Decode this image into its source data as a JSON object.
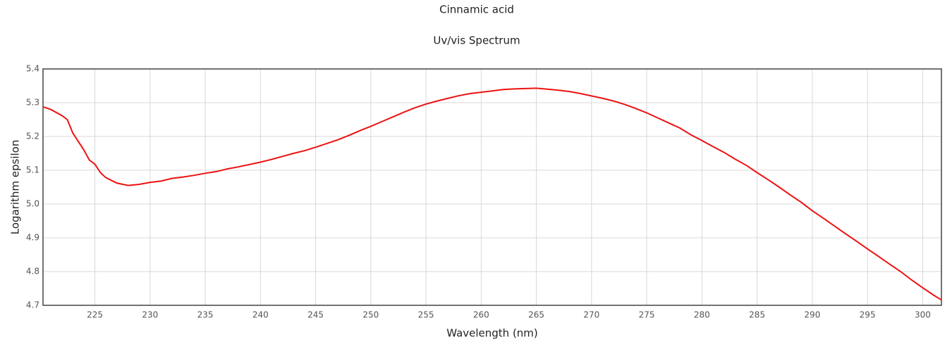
{
  "chart_data": {
    "type": "line",
    "title": "Cinnamic acid",
    "subtitle": "Uv/vis Spectrum",
    "x_label": "Wavelength (nm)",
    "y_label": "Logarithm epsilon",
    "xlim": [
      220.3,
      301.7
    ],
    "ylim": [
      4.7,
      5.4
    ],
    "xticks": [
      225,
      230,
      235,
      240,
      245,
      250,
      255,
      260,
      265,
      270,
      275,
      280,
      285,
      290,
      295,
      300
    ],
    "yticks": [
      4.7,
      4.8,
      4.9,
      {
        "value": 5,
        "label": "5.0"
      },
      5.1,
      5.2,
      5.3,
      5.4
    ],
    "grid": true,
    "x": [
      220.3,
      221,
      222,
      222.5,
      223,
      224,
      224.5,
      225,
      225.5,
      226,
      227,
      228,
      229,
      230,
      231,
      232,
      233,
      234,
      235,
      236,
      237,
      238,
      239,
      240,
      241,
      242,
      243,
      244,
      245,
      246,
      247,
      248,
      249,
      250,
      251,
      252,
      253,
      254,
      255,
      256,
      257,
      258,
      259,
      260,
      261,
      262,
      263,
      264,
      265,
      266,
      267,
      268,
      269,
      270,
      271,
      272,
      273,
      274,
      275,
      276,
      277,
      278,
      279,
      280,
      281,
      282,
      283,
      284,
      285,
      286,
      287,
      288,
      289,
      290,
      291,
      292,
      293,
      294,
      295,
      296,
      297,
      298,
      299,
      300,
      301,
      301.7
    ],
    "series": [
      {
        "name": "Cinnamic acid",
        "color": "#ee1111",
        "values": [
          5.288,
          5.28,
          5.262,
          5.25,
          5.21,
          5.16,
          5.13,
          5.118,
          5.093,
          5.078,
          5.062,
          5.055,
          5.058,
          5.064,
          5.068,
          5.076,
          5.08,
          5.085,
          5.091,
          5.096,
          5.104,
          5.11,
          5.117,
          5.124,
          5.132,
          5.141,
          5.15,
          5.158,
          5.168,
          5.179,
          5.19,
          5.203,
          5.217,
          5.23,
          5.244,
          5.258,
          5.272,
          5.285,
          5.296,
          5.305,
          5.313,
          5.321,
          5.327,
          5.331,
          5.335,
          5.339,
          5.341,
          5.342,
          5.343,
          5.34,
          5.337,
          5.333,
          5.327,
          5.32,
          5.313,
          5.305,
          5.295,
          5.283,
          5.27,
          5.255,
          5.24,
          5.225,
          5.205,
          5.188,
          5.17,
          5.153,
          5.133,
          5.115,
          5.093,
          5.072,
          5.05,
          5.027,
          5.005,
          4.98,
          4.958,
          4.935,
          4.912,
          4.89,
          4.867,
          4.845,
          4.822,
          4.8,
          4.775,
          4.752,
          4.73,
          4.716
        ]
      }
    ]
  }
}
